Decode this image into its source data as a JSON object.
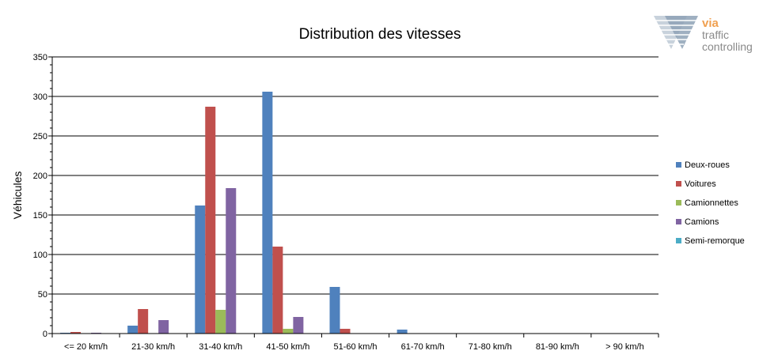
{
  "chart_data": {
    "type": "bar",
    "title": "Distribution des vitesses",
    "xlabel": "",
    "ylabel": "Véhicules",
    "ylim": [
      0,
      350
    ],
    "ytick_step": 50,
    "grid": true,
    "legend_position": "right",
    "categories": [
      "<= 20 km/h",
      "21-30 km/h",
      "31-40 km/h",
      "41-50 km/h",
      "51-60 km/h",
      "61-70 km/h",
      "71-80 km/h",
      "81-90 km/h",
      "> 90 km/h"
    ],
    "series": [
      {
        "name": "Deux-roues",
        "color": "#4f81bd",
        "values": [
          1,
          10,
          162,
          306,
          59,
          5,
          0,
          0,
          0
        ]
      },
      {
        "name": "Voitures",
        "color": "#c0504d",
        "values": [
          2,
          31,
          287,
          110,
          6,
          0,
          0,
          0,
          0
        ]
      },
      {
        "name": "Camionnettes",
        "color": "#9bbb59",
        "values": [
          0,
          0,
          30,
          6,
          0,
          0,
          0,
          0,
          0
        ]
      },
      {
        "name": "Camions",
        "color": "#8064a2",
        "values": [
          1,
          17,
          184,
          21,
          0,
          0,
          0,
          0,
          0
        ]
      },
      {
        "name": "Semi-remorque",
        "color": "#4bacc6",
        "values": [
          0,
          0,
          0,
          0,
          0,
          0,
          0,
          0,
          0
        ]
      }
    ]
  },
  "logo": {
    "line1": "via",
    "line2": "traffic",
    "line3": "controlling"
  }
}
